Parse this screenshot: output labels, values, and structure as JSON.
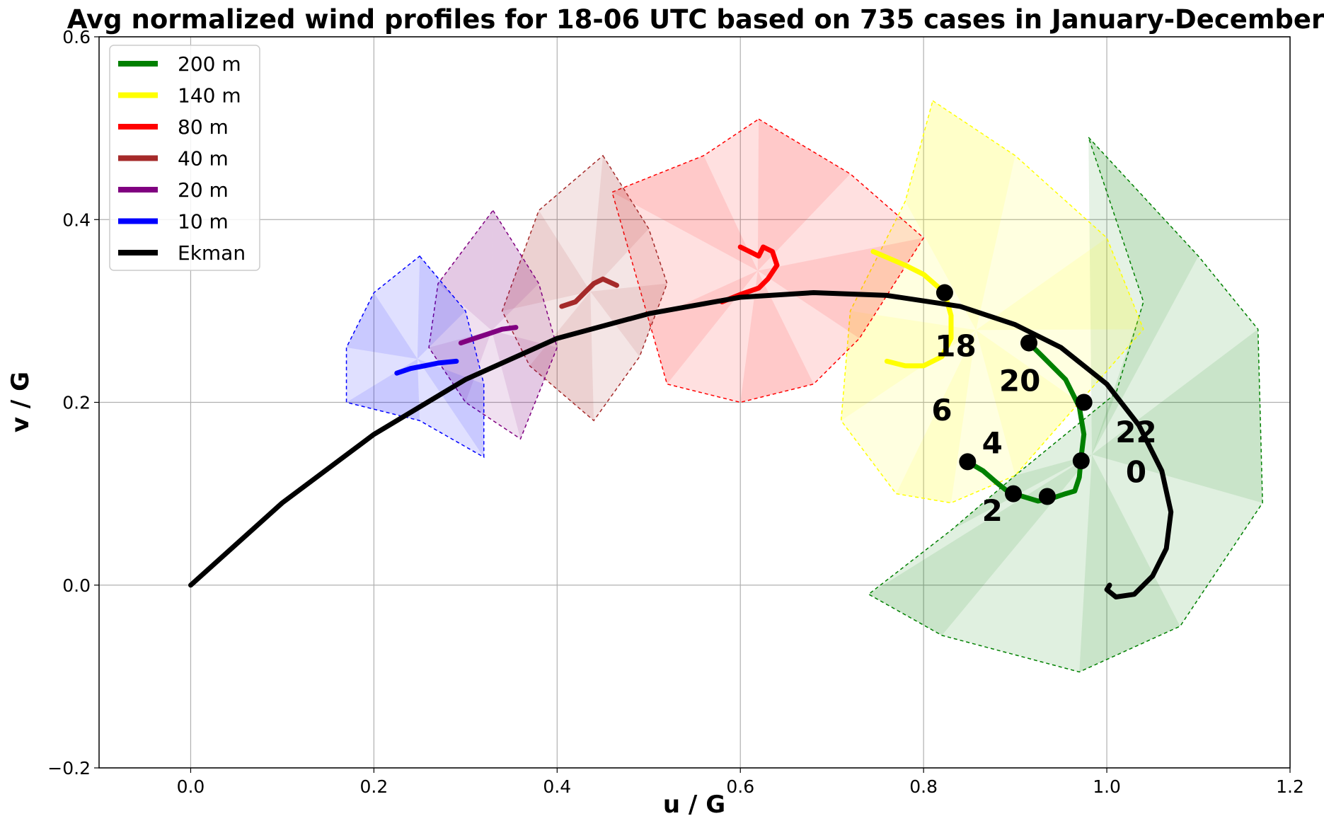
{
  "chart_data": {
    "type": "line",
    "title": "Avg normalized wind profiles for 18-06 UTC based on 735 cases in January-December",
    "xlabel": "u / G",
    "ylabel": "v / G",
    "xlim": [
      -0.1,
      1.2
    ],
    "ylim": [
      -0.2,
      0.6
    ],
    "xticks": [
      "0.0",
      "0.2",
      "0.4",
      "0.6",
      "0.8",
      "1.0",
      "1.2"
    ],
    "yticks": [
      "−0.2",
      "0.0",
      "0.2",
      "0.4",
      "0.6"
    ],
    "grid": true,
    "legend_position": "top-left",
    "series": [
      {
        "name": "200 m",
        "color": "#008000",
        "x": [
          0.915,
          0.93,
          0.955,
          0.97,
          0.975,
          0.972,
          0.97,
          0.965,
          0.955,
          0.94,
          0.925,
          0.905,
          0.895,
          0.88,
          0.865,
          0.848
        ],
        "y": [
          0.265,
          0.25,
          0.225,
          0.195,
          0.165,
          0.14,
          0.118,
          0.103,
          0.1,
          0.095,
          0.092,
          0.098,
          0.1,
          0.112,
          0.125,
          0.135
        ]
      },
      {
        "name": "140 m",
        "color": "#ffff00",
        "x": [
          0.745,
          0.78,
          0.8,
          0.823,
          0.83,
          0.83,
          0.82,
          0.8,
          0.78,
          0.76
        ],
        "y": [
          0.365,
          0.35,
          0.34,
          0.32,
          0.295,
          0.27,
          0.25,
          0.24,
          0.24,
          0.245
        ]
      },
      {
        "name": "80 m",
        "color": "#ff0000",
        "x": [
          0.58,
          0.6,
          0.62,
          0.63,
          0.64,
          0.635,
          0.625,
          0.62,
          0.61,
          0.6
        ],
        "y": [
          0.31,
          0.318,
          0.325,
          0.335,
          0.35,
          0.365,
          0.37,
          0.36,
          0.365,
          0.37
        ]
      },
      {
        "name": "40 m",
        "color": "#a52a2a",
        "x": [
          0.405,
          0.42,
          0.43,
          0.44,
          0.45,
          0.465
        ],
        "y": [
          0.305,
          0.31,
          0.32,
          0.33,
          0.335,
          0.328
        ]
      },
      {
        "name": "20 m",
        "color": "#800080",
        "x": [
          0.295,
          0.31,
          0.325,
          0.34,
          0.355
        ],
        "y": [
          0.265,
          0.27,
          0.275,
          0.28,
          0.282
        ]
      },
      {
        "name": "10 m",
        "color": "#0000ff",
        "x": [
          0.225,
          0.24,
          0.255,
          0.27,
          0.29
        ],
        "y": [
          0.232,
          0.237,
          0.24,
          0.243,
          0.245
        ]
      },
      {
        "name": "Ekman",
        "color": "#000000",
        "x": [
          0.0,
          0.1,
          0.2,
          0.3,
          0.4,
          0.5,
          0.6,
          0.68,
          0.76,
          0.84,
          0.9,
          0.95,
          1.0,
          1.035,
          1.06,
          1.07,
          1.065,
          1.05,
          1.03,
          1.01,
          1.0,
          1.003
        ],
        "y": [
          0.0,
          0.09,
          0.165,
          0.225,
          0.27,
          0.297,
          0.315,
          0.32,
          0.317,
          0.305,
          0.285,
          0.26,
          0.22,
          0.175,
          0.125,
          0.08,
          0.04,
          0.01,
          -0.01,
          -0.013,
          -0.005,
          0.0
        ]
      }
    ],
    "hour_markers": [
      {
        "label": "18",
        "x": 0.823,
        "y": 0.32
      },
      {
        "label": "20",
        "x": 0.915,
        "y": 0.265
      },
      {
        "label": "22",
        "x": 0.975,
        "y": 0.2
      },
      {
        "label": "0",
        "x": 0.972,
        "y": 0.136
      },
      {
        "label": "2",
        "x": 0.935,
        "y": 0.097
      },
      {
        "label": "4",
        "x": 0.898,
        "y": 0.1
      },
      {
        "label": "6",
        "x": 0.848,
        "y": 0.135
      }
    ],
    "hour_label_positions": [
      {
        "label": "18",
        "x": 0.835,
        "y": 0.262
      },
      {
        "label": "20",
        "x": 0.905,
        "y": 0.224
      },
      {
        "label": "22",
        "x": 1.032,
        "y": 0.168
      },
      {
        "label": "0",
        "x": 1.032,
        "y": 0.124
      },
      {
        "label": "2",
        "x": 0.875,
        "y": 0.082
      },
      {
        "label": "4",
        "x": 0.875,
        "y": 0.156
      },
      {
        "label": "6",
        "x": 0.82,
        "y": 0.192
      }
    ],
    "spread_regions": [
      {
        "series": "200 m",
        "color": "#008000",
        "points": [
          [
            0.98,
            0.49
          ],
          [
            1.1,
            0.36
          ],
          [
            1.165,
            0.28
          ],
          [
            1.17,
            0.09
          ],
          [
            1.08,
            -0.045
          ],
          [
            0.97,
            -0.095
          ],
          [
            0.82,
            -0.055
          ],
          [
            0.74,
            -0.01
          ],
          [
            0.83,
            0.06
          ],
          [
            0.9,
            0.12
          ],
          [
            1.01,
            0.21
          ],
          [
            1.04,
            0.31
          ]
        ]
      },
      {
        "series": "140 m",
        "color": "#ffff00",
        "points": [
          [
            0.81,
            0.53
          ],
          [
            0.9,
            0.47
          ],
          [
            1.0,
            0.38
          ],
          [
            1.04,
            0.28
          ],
          [
            0.97,
            0.2
          ],
          [
            0.9,
            0.12
          ],
          [
            0.83,
            0.09
          ],
          [
            0.77,
            0.1
          ],
          [
            0.71,
            0.18
          ],
          [
            0.72,
            0.3
          ],
          [
            0.78,
            0.42
          ]
        ]
      },
      {
        "series": "80 m",
        "color": "#ff0000",
        "points": [
          [
            0.62,
            0.51
          ],
          [
            0.72,
            0.45
          ],
          [
            0.8,
            0.38
          ],
          [
            0.73,
            0.27
          ],
          [
            0.68,
            0.22
          ],
          [
            0.6,
            0.2
          ],
          [
            0.52,
            0.22
          ],
          [
            0.5,
            0.29
          ],
          [
            0.46,
            0.43
          ],
          [
            0.56,
            0.47
          ]
        ]
      },
      {
        "series": "40 m",
        "color": "#a52a2a",
        "points": [
          [
            0.45,
            0.47
          ],
          [
            0.5,
            0.39
          ],
          [
            0.52,
            0.33
          ],
          [
            0.49,
            0.25
          ],
          [
            0.44,
            0.18
          ],
          [
            0.37,
            0.24
          ],
          [
            0.34,
            0.3
          ],
          [
            0.38,
            0.41
          ]
        ]
      },
      {
        "series": "20 m",
        "color": "#800080",
        "points": [
          [
            0.33,
            0.41
          ],
          [
            0.38,
            0.33
          ],
          [
            0.4,
            0.26
          ],
          [
            0.36,
            0.16
          ],
          [
            0.3,
            0.2
          ],
          [
            0.26,
            0.26
          ],
          [
            0.27,
            0.33
          ]
        ]
      },
      {
        "series": "10 m",
        "color": "#0000ff",
        "points": [
          [
            0.25,
            0.36
          ],
          [
            0.3,
            0.3
          ],
          [
            0.32,
            0.22
          ],
          [
            0.32,
            0.14
          ],
          [
            0.25,
            0.18
          ],
          [
            0.17,
            0.2
          ],
          [
            0.17,
            0.26
          ],
          [
            0.2,
            0.32
          ]
        ]
      }
    ]
  }
}
